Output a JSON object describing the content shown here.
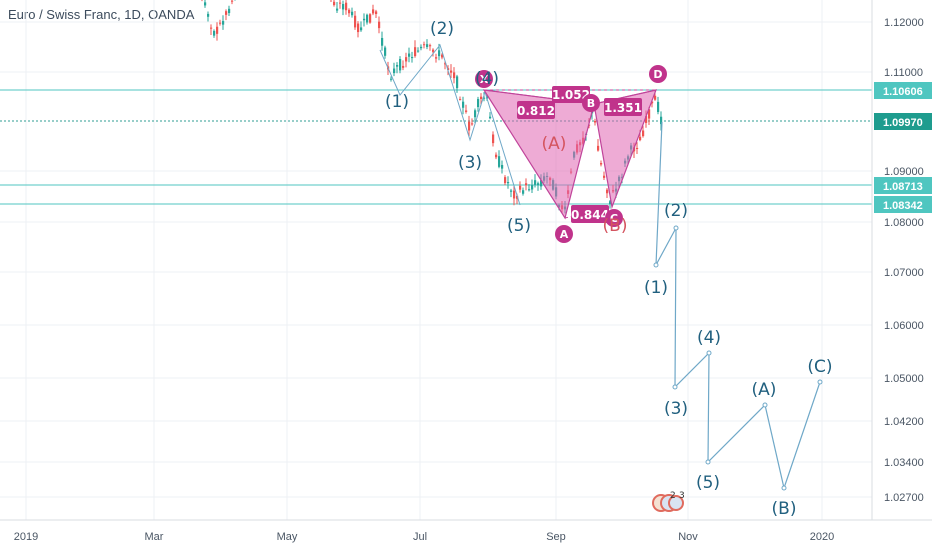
{
  "header": {
    "symbol_title": "Euro / Swiss Franc, 1D, OANDA"
  },
  "chart_data": {
    "type": "candlestick",
    "x_ticks": [
      "2019",
      "Mar",
      "May",
      "Jul",
      "Sep",
      "Nov",
      "2020"
    ],
    "y_ticks": [
      "1.12000",
      "1.11000",
      "1.09000",
      "1.08000",
      "1.07000",
      "1.06000",
      "1.05000",
      "1.04200",
      "1.03400",
      "1.02700"
    ],
    "price_lines": [
      {
        "value": "1.10606",
        "color": "#4fc6c0",
        "style": "solid"
      },
      {
        "value": "1.09970",
        "color": "#2f9e93",
        "style": "dashed",
        "current": true
      },
      {
        "value": "1.08713",
        "color": "#4fc6c0",
        "style": "solid"
      },
      {
        "value": "1.08342",
        "color": "#4fc6c0",
        "style": "solid"
      }
    ],
    "colors": {
      "up": "#26a69a",
      "down": "#ef5350",
      "pattern_fill": "#e066b3",
      "wave_line": "#6fa8c8",
      "wave_label": "#21607f"
    },
    "harmonic_pattern": {
      "points": [
        "X",
        "A",
        "B",
        "C",
        "D"
      ],
      "ratios": [
        "0.812",
        "1.052",
        "0.844",
        "1.351"
      ]
    },
    "historical_waves": [
      "(1)",
      "(2)",
      "(3)",
      "(4)",
      "(5)",
      "(A)",
      "(B)"
    ],
    "projection_waves": [
      "(1)",
      "(2)",
      "(3)",
      "(4)",
      "(5)",
      "(A)",
      "(B)",
      "(C)"
    ],
    "event_icons": [
      "2",
      "3"
    ]
  }
}
